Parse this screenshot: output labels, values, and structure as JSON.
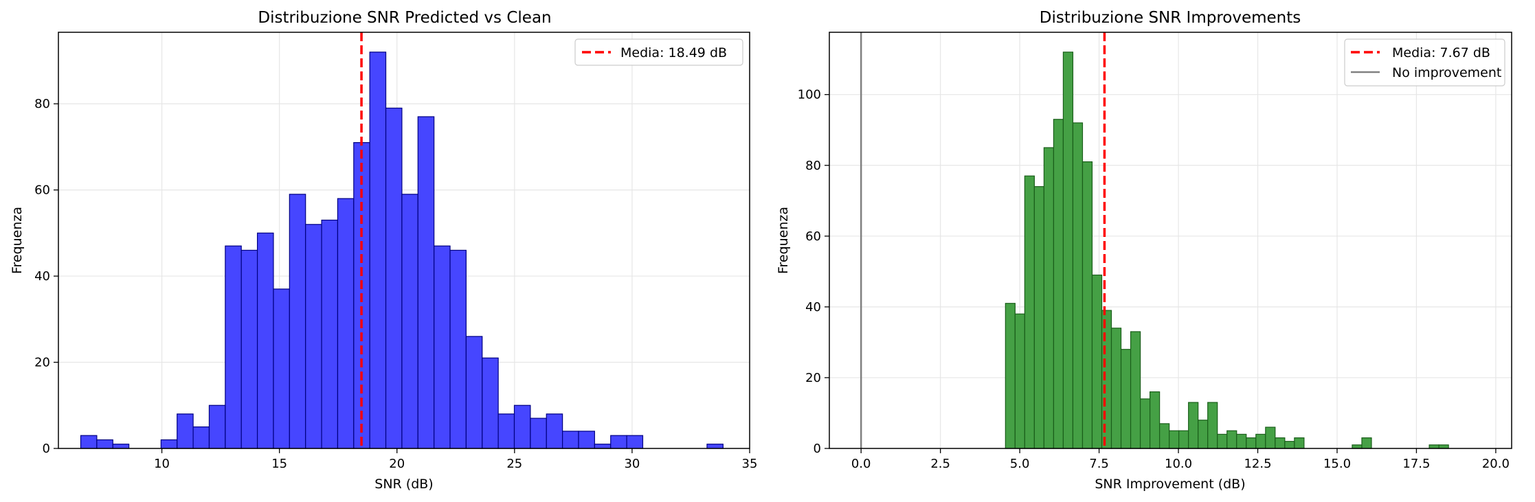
{
  "chart_data": [
    {
      "type": "bar",
      "title": "Distribuzione SNR Predicted vs Clean",
      "xlabel": "SNR (dB)",
      "ylabel": "Frequenza",
      "xlim": [
        5.6,
        35
      ],
      "ylim": [
        0,
        96.6
      ],
      "xticks": [
        "10",
        "15",
        "20",
        "25",
        "30",
        "35"
      ],
      "yticks": [
        "0",
        "20",
        "40",
        "60",
        "80"
      ],
      "grid": true,
      "legend_position": "top-right",
      "bar_color": "#0000ff",
      "bins_start": 6.55,
      "bin_width": 0.683,
      "values": [
        3,
        2,
        1,
        0,
        0,
        2,
        8,
        5,
        10,
        47,
        46,
        50,
        37,
        59,
        52,
        53,
        58,
        71,
        92,
        79,
        59,
        77,
        47,
        46,
        26,
        21,
        8,
        10,
        7,
        8,
        4,
        4,
        1,
        3,
        3,
        0,
        0,
        0,
        0,
        1
      ],
      "mean_line": {
        "value": 18.49,
        "label": "Media: 18.49 dB",
        "color": "#ff0000"
      }
    },
    {
      "type": "bar",
      "title": "Distribuzione SNR Improvements",
      "xlabel": "SNR Improvement (dB)",
      "ylabel": "Frequenza",
      "xlim": [
        -1.0,
        20.5
      ],
      "ylim": [
        0,
        117.6
      ],
      "xticks": [
        "0.0",
        "2.5",
        "5.0",
        "7.5",
        "10.0",
        "12.5",
        "15.0",
        "17.5",
        "20.0"
      ],
      "yticks": [
        "0",
        "20",
        "40",
        "60",
        "80",
        "100"
      ],
      "grid": true,
      "legend_position": "top-right",
      "bar_color": "#228b22",
      "bins_start": 4.55,
      "bin_width": 0.3035,
      "values": [
        41,
        38,
        77,
        74,
        85,
        93,
        112,
        92,
        81,
        49,
        39,
        34,
        28,
        33,
        14,
        16,
        7,
        5,
        5,
        13,
        8,
        13,
        4,
        5,
        4,
        3,
        4,
        6,
        3,
        2,
        3,
        0,
        0,
        0,
        0,
        0,
        1,
        3,
        0,
        0,
        0,
        0,
        0,
        0,
        1,
        1,
        0,
        0
      ],
      "mean_line": {
        "value": 7.67,
        "label": "Media: 7.67 dB",
        "color": "#ff0000"
      },
      "zero_line": {
        "value": 0,
        "label": "No improvement",
        "color": "#808080"
      }
    }
  ]
}
